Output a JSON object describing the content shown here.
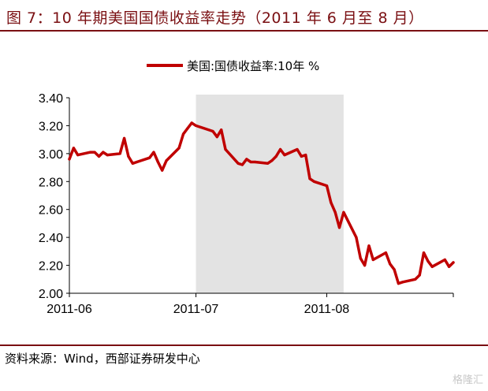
{
  "figure": {
    "title": "图 7：10 年期美国国债收益率走势（2011 年 6 月至 8 月）",
    "source": "资料来源：Wind，西部证券研发中心",
    "watermark": "格隆汇"
  },
  "colors": {
    "line": "#c00000",
    "shade": "#e3e3e3",
    "accent": "#7a0f12"
  },
  "chart_data": {
    "type": "line",
    "title": "",
    "xlabel": "",
    "ylabel": "",
    "ylim": [
      2.0,
      3.4
    ],
    "yticks": [
      "2.00",
      "2.20",
      "2.40",
      "2.60",
      "2.80",
      "3.00",
      "3.20",
      "3.40"
    ],
    "xticks": [
      "2011-06",
      "2011-07",
      "2011-08"
    ],
    "legend": {
      "position": "top",
      "entries": [
        "美国:国债收益率:10年 %"
      ]
    },
    "grid": false,
    "shaded_region": {
      "x_start": "2011-07-01",
      "x_end": "2011-08-05"
    },
    "series": [
      {
        "name": "美国:国债收益率:10年 %",
        "x": [
          "2011-06-01",
          "2011-06-02",
          "2011-06-03",
          "2011-06-06",
          "2011-06-07",
          "2011-06-08",
          "2011-06-09",
          "2011-06-10",
          "2011-06-13",
          "2011-06-14",
          "2011-06-15",
          "2011-06-16",
          "2011-06-17",
          "2011-06-20",
          "2011-06-21",
          "2011-06-22",
          "2011-06-23",
          "2011-06-24",
          "2011-06-27",
          "2011-06-28",
          "2011-06-29",
          "2011-06-30",
          "2011-07-01",
          "2011-07-05",
          "2011-07-06",
          "2011-07-07",
          "2011-07-08",
          "2011-07-11",
          "2011-07-12",
          "2011-07-13",
          "2011-07-14",
          "2011-07-15",
          "2011-07-18",
          "2011-07-19",
          "2011-07-20",
          "2011-07-21",
          "2011-07-22",
          "2011-07-25",
          "2011-07-26",
          "2011-07-27",
          "2011-07-28",
          "2011-07-29",
          "2011-08-01",
          "2011-08-02",
          "2011-08-03",
          "2011-08-04",
          "2011-08-05",
          "2011-08-08",
          "2011-08-09",
          "2011-08-10",
          "2011-08-11",
          "2011-08-12",
          "2011-08-15",
          "2011-08-16",
          "2011-08-17",
          "2011-08-18",
          "2011-08-19",
          "2011-08-22",
          "2011-08-23",
          "2011-08-24",
          "2011-08-25",
          "2011-08-26",
          "2011-08-29",
          "2011-08-30",
          "2011-08-31"
        ],
        "values": [
          2.96,
          3.04,
          2.99,
          3.01,
          3.01,
          2.98,
          3.01,
          2.99,
          3.0,
          3.11,
          2.98,
          2.93,
          2.94,
          2.97,
          3.01,
          2.94,
          2.88,
          2.95,
          3.04,
          3.14,
          3.18,
          3.22,
          3.2,
          3.16,
          3.12,
          3.17,
          3.03,
          2.93,
          2.92,
          2.96,
          2.94,
          2.94,
          2.93,
          2.95,
          2.98,
          3.03,
          2.99,
          3.03,
          2.98,
          2.99,
          2.82,
          2.8,
          2.77,
          2.65,
          2.58,
          2.47,
          2.58,
          2.4,
          2.25,
          2.2,
          2.34,
          2.24,
          2.29,
          2.21,
          2.17,
          2.07,
          2.08,
          2.1,
          2.13,
          2.29,
          2.23,
          2.19,
          2.24,
          2.19,
          2.22
        ]
      }
    ]
  }
}
